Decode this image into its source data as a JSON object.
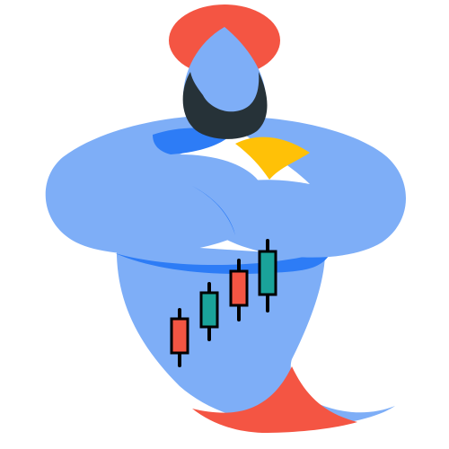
{
  "logo": {
    "icon": "genie-trading-mascot",
    "colors": {
      "body": "#7eaef7",
      "body_shadow": "#2d7cf6",
      "hat": "#f45543",
      "beard": "#263238",
      "hand": "#ffc107",
      "candle_up": "#1aa39a",
      "candle_down": "#f45543",
      "candle_outline": "#000000",
      "background": "#ffffff"
    },
    "candles": [
      {
        "direction": "down"
      },
      {
        "direction": "up"
      },
      {
        "direction": "down"
      },
      {
        "direction": "up"
      }
    ]
  }
}
